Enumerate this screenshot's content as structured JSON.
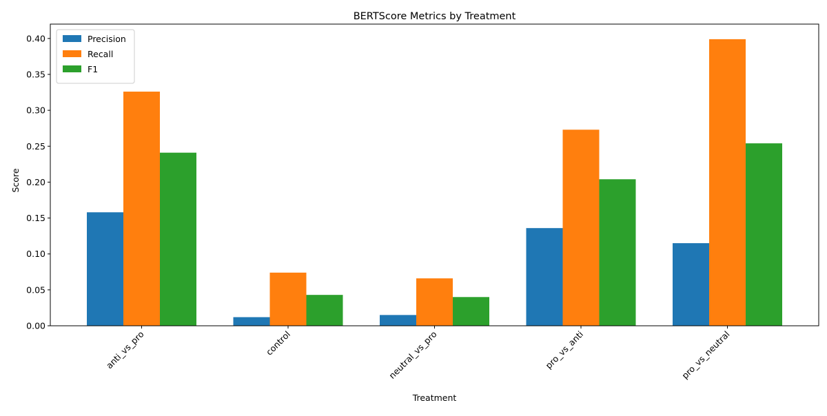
{
  "chart_data": {
    "type": "bar",
    "title": "BERTScore Metrics by Treatment",
    "xlabel": "Treatment",
    "ylabel": "Score",
    "categories": [
      "anti_vs_pro",
      "control",
      "neutral_vs_pro",
      "pro_vs_anti",
      "pro_vs_neutral"
    ],
    "series": [
      {
        "name": "Precision",
        "color": "#1f77b4",
        "values": [
          0.158,
          0.012,
          0.015,
          0.136,
          0.115
        ]
      },
      {
        "name": "Recall",
        "color": "#ff7f0e",
        "values": [
          0.326,
          0.074,
          0.066,
          0.273,
          0.399
        ]
      },
      {
        "name": "F1",
        "color": "#2ca02c",
        "values": [
          0.241,
          0.043,
          0.04,
          0.204,
          0.254
        ]
      }
    ],
    "ylim": [
      0,
      0.42
    ],
    "yticks": [
      "0.00",
      "0.05",
      "0.10",
      "0.15",
      "0.20",
      "0.25",
      "0.30",
      "0.35",
      "0.40"
    ],
    "legend_position": "top-left",
    "grid": false
  }
}
